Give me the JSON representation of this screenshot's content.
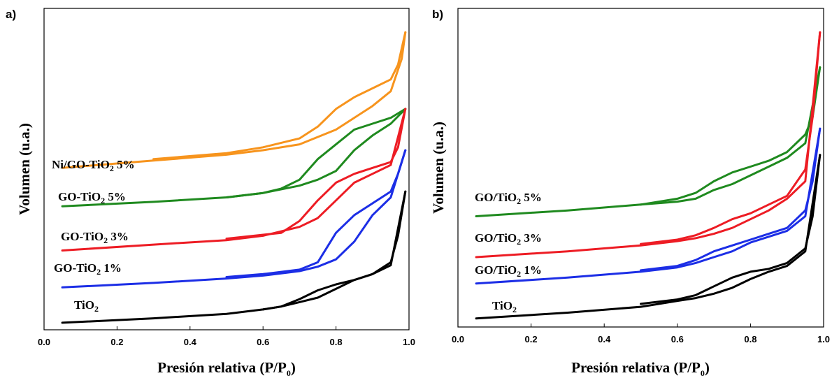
{
  "chart_data": [
    {
      "type": "line",
      "panel_label": "a)",
      "xlabel": "Presión relativa (P/P",
      "xlabel_sub": "0",
      "xlabel_end": ")",
      "ylabel": "Volumen (u.a.)",
      "xlim": [
        0.0,
        1.0
      ],
      "xticks": [
        "0.0",
        "0.2",
        "0.4",
        "0.6",
        "0.8",
        "1.0"
      ],
      "y_tick_labels_shown": false,
      "series": [
        {
          "label_parts": [
            "Ni/GO-TiO",
            "2",
            " 5%"
          ],
          "color": "#f7941d",
          "adsorption": [
            [
              0.05,
              0.53
            ],
            [
              0.3,
              0.555
            ],
            [
              0.5,
              0.575
            ],
            [
              0.6,
              0.59
            ],
            [
              0.7,
              0.61
            ],
            [
              0.8,
              0.66
            ],
            [
              0.85,
              0.7
            ],
            [
              0.9,
              0.74
            ],
            [
              0.95,
              0.79
            ],
            [
              0.98,
              0.9
            ],
            [
              0.99,
              0.99
            ]
          ],
          "desorption": [
            [
              0.99,
              0.99
            ],
            [
              0.97,
              0.88
            ],
            [
              0.95,
              0.83
            ],
            [
              0.9,
              0.8
            ],
            [
              0.85,
              0.77
            ],
            [
              0.8,
              0.73
            ],
            [
              0.75,
              0.67
            ],
            [
              0.7,
              0.63
            ],
            [
              0.6,
              0.6
            ],
            [
              0.5,
              0.58
            ],
            [
              0.3,
              0.56
            ]
          ]
        },
        {
          "label_parts": [
            "GO-TiO",
            "2",
            " 5%"
          ],
          "color": "#1f8a1f",
          "adsorption": [
            [
              0.05,
              0.4
            ],
            [
              0.3,
              0.415
            ],
            [
              0.5,
              0.43
            ],
            [
              0.6,
              0.445
            ],
            [
              0.7,
              0.47
            ],
            [
              0.75,
              0.49
            ],
            [
              0.8,
              0.52
            ],
            [
              0.85,
              0.59
            ],
            [
              0.9,
              0.64
            ],
            [
              0.95,
              0.68
            ],
            [
              0.99,
              0.73
            ]
          ],
          "desorption": [
            [
              0.99,
              0.73
            ],
            [
              0.95,
              0.7
            ],
            [
              0.9,
              0.68
            ],
            [
              0.85,
              0.66
            ],
            [
              0.8,
              0.61
            ],
            [
              0.75,
              0.56
            ],
            [
              0.7,
              0.49
            ],
            [
              0.65,
              0.46
            ],
            [
              0.6,
              0.445
            ],
            [
              0.5,
              0.43
            ]
          ]
        },
        {
          "label_parts": [
            "GO-TiO",
            "2",
            " 3%"
          ],
          "color": "#ed1c24",
          "adsorption": [
            [
              0.05,
              0.25
            ],
            [
              0.3,
              0.27
            ],
            [
              0.5,
              0.285
            ],
            [
              0.6,
              0.3
            ],
            [
              0.7,
              0.33
            ],
            [
              0.75,
              0.36
            ],
            [
              0.8,
              0.42
            ],
            [
              0.85,
              0.48
            ],
            [
              0.9,
              0.51
            ],
            [
              0.95,
              0.54
            ],
            [
              0.99,
              0.73
            ]
          ],
          "desorption": [
            [
              0.99,
              0.73
            ],
            [
              0.97,
              0.6
            ],
            [
              0.95,
              0.55
            ],
            [
              0.9,
              0.53
            ],
            [
              0.85,
              0.51
            ],
            [
              0.8,
              0.48
            ],
            [
              0.75,
              0.42
            ],
            [
              0.7,
              0.35
            ],
            [
              0.65,
              0.31
            ],
            [
              0.5,
              0.29
            ]
          ]
        },
        {
          "label_parts": [
            "GO-TiO",
            "2",
            " 1%"
          ],
          "color": "#1c2ee6",
          "adsorption": [
            [
              0.05,
              0.125
            ],
            [
              0.3,
              0.14
            ],
            [
              0.5,
              0.155
            ],
            [
              0.6,
              0.165
            ],
            [
              0.7,
              0.18
            ],
            [
              0.75,
              0.195
            ],
            [
              0.8,
              0.22
            ],
            [
              0.85,
              0.28
            ],
            [
              0.9,
              0.37
            ],
            [
              0.95,
              0.43
            ],
            [
              0.99,
              0.59
            ]
          ],
          "desorption": [
            [
              0.99,
              0.59
            ],
            [
              0.97,
              0.51
            ],
            [
              0.95,
              0.45
            ],
            [
              0.9,
              0.41
            ],
            [
              0.85,
              0.37
            ],
            [
              0.8,
              0.31
            ],
            [
              0.75,
              0.21
            ],
            [
              0.7,
              0.185
            ],
            [
              0.6,
              0.17
            ],
            [
              0.5,
              0.16
            ]
          ]
        },
        {
          "label_parts": [
            "TiO",
            "2",
            ""
          ],
          "color": "#000000",
          "adsorption": [
            [
              0.05,
              0.005
            ],
            [
              0.3,
              0.02
            ],
            [
              0.5,
              0.035
            ],
            [
              0.6,
              0.05
            ],
            [
              0.65,
              0.06
            ],
            [
              0.7,
              0.075
            ],
            [
              0.75,
              0.09
            ],
            [
              0.8,
              0.12
            ],
            [
              0.85,
              0.15
            ],
            [
              0.9,
              0.17
            ],
            [
              0.95,
              0.2
            ],
            [
              0.99,
              0.45
            ]
          ],
          "desorption": [
            [
              0.99,
              0.45
            ],
            [
              0.97,
              0.3
            ],
            [
              0.95,
              0.21
            ],
            [
              0.9,
              0.17
            ],
            [
              0.85,
              0.15
            ],
            [
              0.8,
              0.135
            ],
            [
              0.75,
              0.115
            ],
            [
              0.7,
              0.085
            ],
            [
              0.65,
              0.06
            ],
            [
              0.6,
              0.05
            ]
          ]
        }
      ]
    },
    {
      "type": "line",
      "panel_label": "b)",
      "xlabel": "Presión relativa (P/P",
      "xlabel_sub": "0",
      "xlabel_end": ")",
      "ylabel": "Volumen (u.a.)",
      "xlim": [
        0.0,
        1.0
      ],
      "xticks": [
        "0.0",
        "0.2",
        "0.4",
        "0.6",
        "0.8",
        "1.0"
      ],
      "y_tick_labels_shown": false,
      "series": [
        {
          "label_parts": [
            "GO/TiO",
            "2",
            " 5%"
          ],
          "color": "#1f8a1f",
          "adsorption": [
            [
              0.05,
              0.36
            ],
            [
              0.3,
              0.38
            ],
            [
              0.5,
              0.4
            ],
            [
              0.6,
              0.41
            ],
            [
              0.65,
              0.42
            ],
            [
              0.7,
              0.45
            ],
            [
              0.75,
              0.47
            ],
            [
              0.8,
              0.5
            ],
            [
              0.85,
              0.53
            ],
            [
              0.9,
              0.56
            ],
            [
              0.95,
              0.61
            ],
            [
              0.99,
              0.87
            ]
          ],
          "desorption": [
            [
              0.99,
              0.87
            ],
            [
              0.97,
              0.7
            ],
            [
              0.95,
              0.64
            ],
            [
              0.9,
              0.58
            ],
            [
              0.85,
              0.55
            ],
            [
              0.8,
              0.53
            ],
            [
              0.75,
              0.51
            ],
            [
              0.7,
              0.48
            ],
            [
              0.65,
              0.44
            ],
            [
              0.6,
              0.42
            ],
            [
              0.5,
              0.4
            ]
          ]
        },
        {
          "label_parts": [
            "GO/TiO",
            "2",
            " 3%"
          ],
          "color": "#ed1c24",
          "adsorption": [
            [
              0.05,
              0.22
            ],
            [
              0.3,
              0.24
            ],
            [
              0.5,
              0.26
            ],
            [
              0.6,
              0.275
            ],
            [
              0.65,
              0.285
            ],
            [
              0.7,
              0.3
            ],
            [
              0.75,
              0.32
            ],
            [
              0.8,
              0.35
            ],
            [
              0.85,
              0.38
            ],
            [
              0.9,
              0.42
            ],
            [
              0.95,
              0.48
            ],
            [
              0.99,
              0.99
            ]
          ],
          "desorption": [
            [
              0.99,
              0.99
            ],
            [
              0.97,
              0.7
            ],
            [
              0.95,
              0.52
            ],
            [
              0.9,
              0.43
            ],
            [
              0.85,
              0.4
            ],
            [
              0.8,
              0.37
            ],
            [
              0.75,
              0.35
            ],
            [
              0.7,
              0.32
            ],
            [
              0.65,
              0.295
            ],
            [
              0.6,
              0.28
            ],
            [
              0.5,
              0.265
            ]
          ]
        },
        {
          "label_parts": [
            "GO/TiO",
            "2",
            " 1%"
          ],
          "color": "#1c2ee6",
          "adsorption": [
            [
              0.05,
              0.13
            ],
            [
              0.3,
              0.15
            ],
            [
              0.5,
              0.17
            ],
            [
              0.6,
              0.185
            ],
            [
              0.65,
              0.2
            ],
            [
              0.7,
              0.22
            ],
            [
              0.75,
              0.24
            ],
            [
              0.8,
              0.27
            ],
            [
              0.85,
              0.29
            ],
            [
              0.9,
              0.31
            ],
            [
              0.95,
              0.36
            ],
            [
              0.99,
              0.66
            ]
          ],
          "desorption": [
            [
              0.99,
              0.66
            ],
            [
              0.97,
              0.48
            ],
            [
              0.95,
              0.38
            ],
            [
              0.9,
              0.32
            ],
            [
              0.85,
              0.3
            ],
            [
              0.8,
              0.28
            ],
            [
              0.75,
              0.26
            ],
            [
              0.7,
              0.24
            ],
            [
              0.65,
              0.21
            ],
            [
              0.6,
              0.19
            ],
            [
              0.5,
              0.175
            ]
          ]
        },
        {
          "label_parts": [
            "TiO",
            "2",
            ""
          ],
          "color": "#000000",
          "adsorption": [
            [
              0.05,
              0.01
            ],
            [
              0.3,
              0.03
            ],
            [
              0.5,
              0.05
            ],
            [
              0.6,
              0.07
            ],
            [
              0.65,
              0.08
            ],
            [
              0.7,
              0.095
            ],
            [
              0.75,
              0.115
            ],
            [
              0.8,
              0.145
            ],
            [
              0.85,
              0.17
            ],
            [
              0.9,
              0.19
            ],
            [
              0.95,
              0.24
            ],
            [
              0.99,
              0.57
            ]
          ],
          "desorption": [
            [
              0.99,
              0.57
            ],
            [
              0.97,
              0.36
            ],
            [
              0.95,
              0.25
            ],
            [
              0.9,
              0.2
            ],
            [
              0.85,
              0.18
            ],
            [
              0.8,
              0.17
            ],
            [
              0.75,
              0.15
            ],
            [
              0.7,
              0.12
            ],
            [
              0.65,
              0.09
            ],
            [
              0.6,
              0.075
            ],
            [
              0.5,
              0.06
            ]
          ]
        }
      ]
    }
  ]
}
